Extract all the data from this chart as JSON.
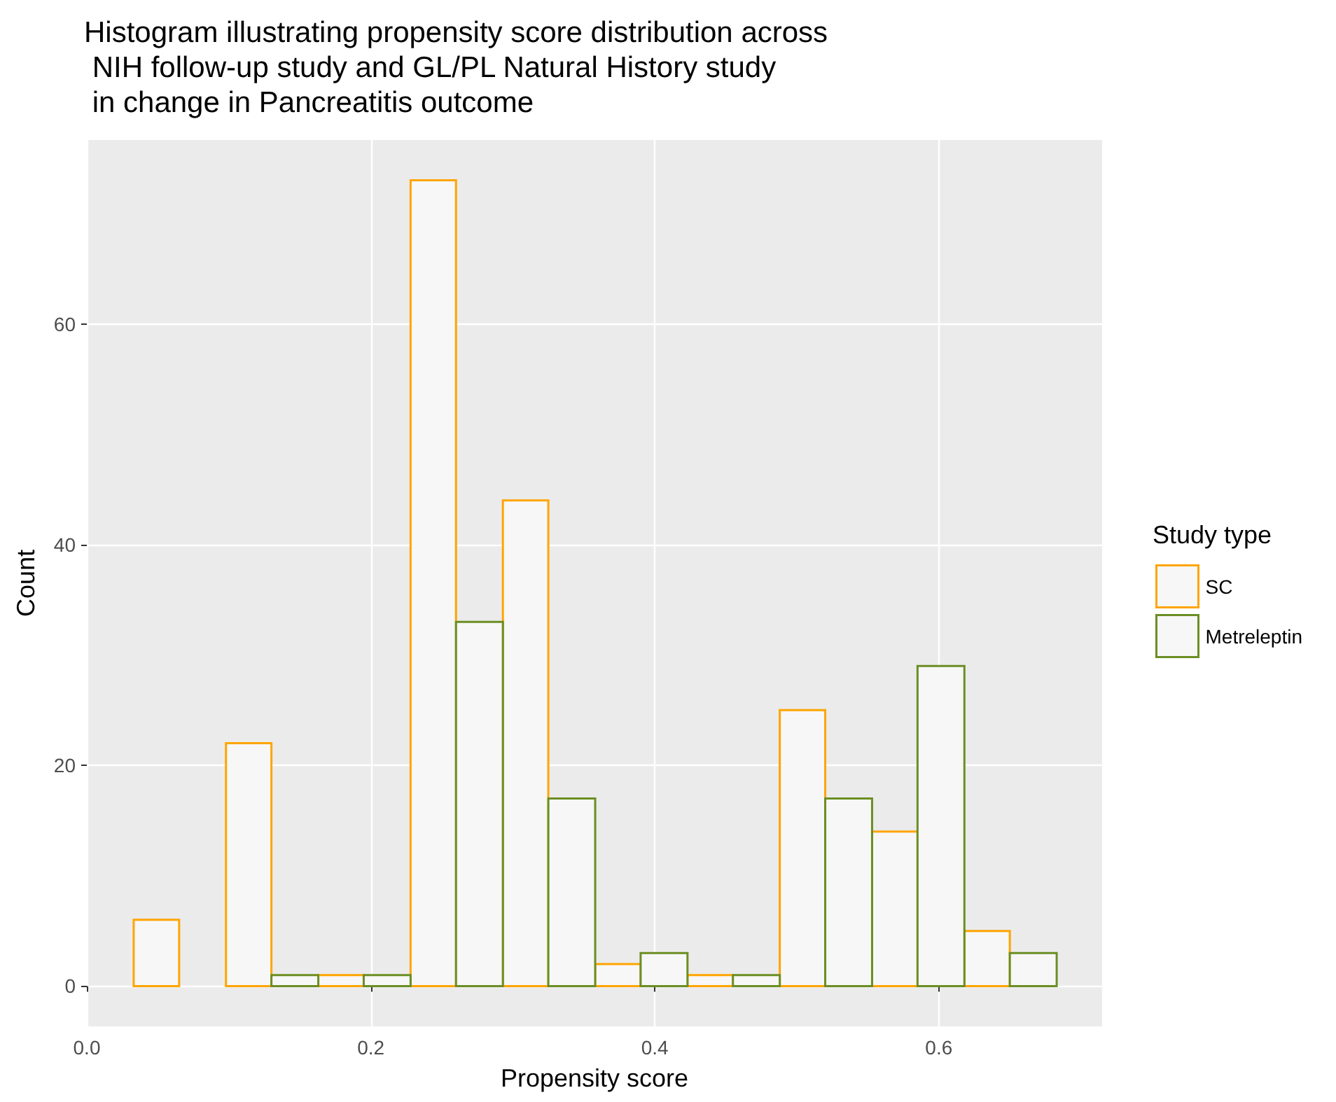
{
  "chart_data": {
    "type": "histogram",
    "title": "Histogram illustrating propensity score distribution across\n NIH follow-up study and GL/PL Natural History study\n in change in Pancreatitis outcome",
    "xlabel": "Propensity score",
    "ylabel": "Count",
    "legend_title": "Study type",
    "bins": [
      0.033,
      0.065,
      0.098,
      0.13,
      0.163,
      0.195,
      0.228,
      0.26,
      0.293,
      0.325,
      0.358,
      0.39,
      0.423,
      0.455,
      0.488,
      0.52,
      0.553,
      0.585,
      0.618,
      0.65,
      0.683
    ],
    "series": [
      {
        "name": "SC",
        "color": "#ffa500",
        "values": [
          6,
          0,
          22,
          0,
          1,
          0,
          73,
          0,
          44,
          0,
          2,
          0,
          1,
          0,
          25,
          0,
          14,
          0,
          5,
          0
        ]
      },
      {
        "name": "Metreleptin",
        "color": "#6b8e23",
        "values": [
          0,
          0,
          0,
          1,
          0,
          1,
          0,
          33,
          0,
          17,
          0,
          3,
          0,
          1,
          0,
          17,
          0,
          29,
          0,
          3
        ]
      }
    ],
    "xlim": [
      0,
      0.715
    ],
    "xticks": [
      {
        "value": 0,
        "label": "0.0"
      },
      0.2,
      0.4,
      0.6
    ],
    "ylim": [
      -3.65,
      76.65
    ],
    "yticks": [
      0,
      20,
      40,
      60
    ],
    "grid": true,
    "legend": "right"
  }
}
